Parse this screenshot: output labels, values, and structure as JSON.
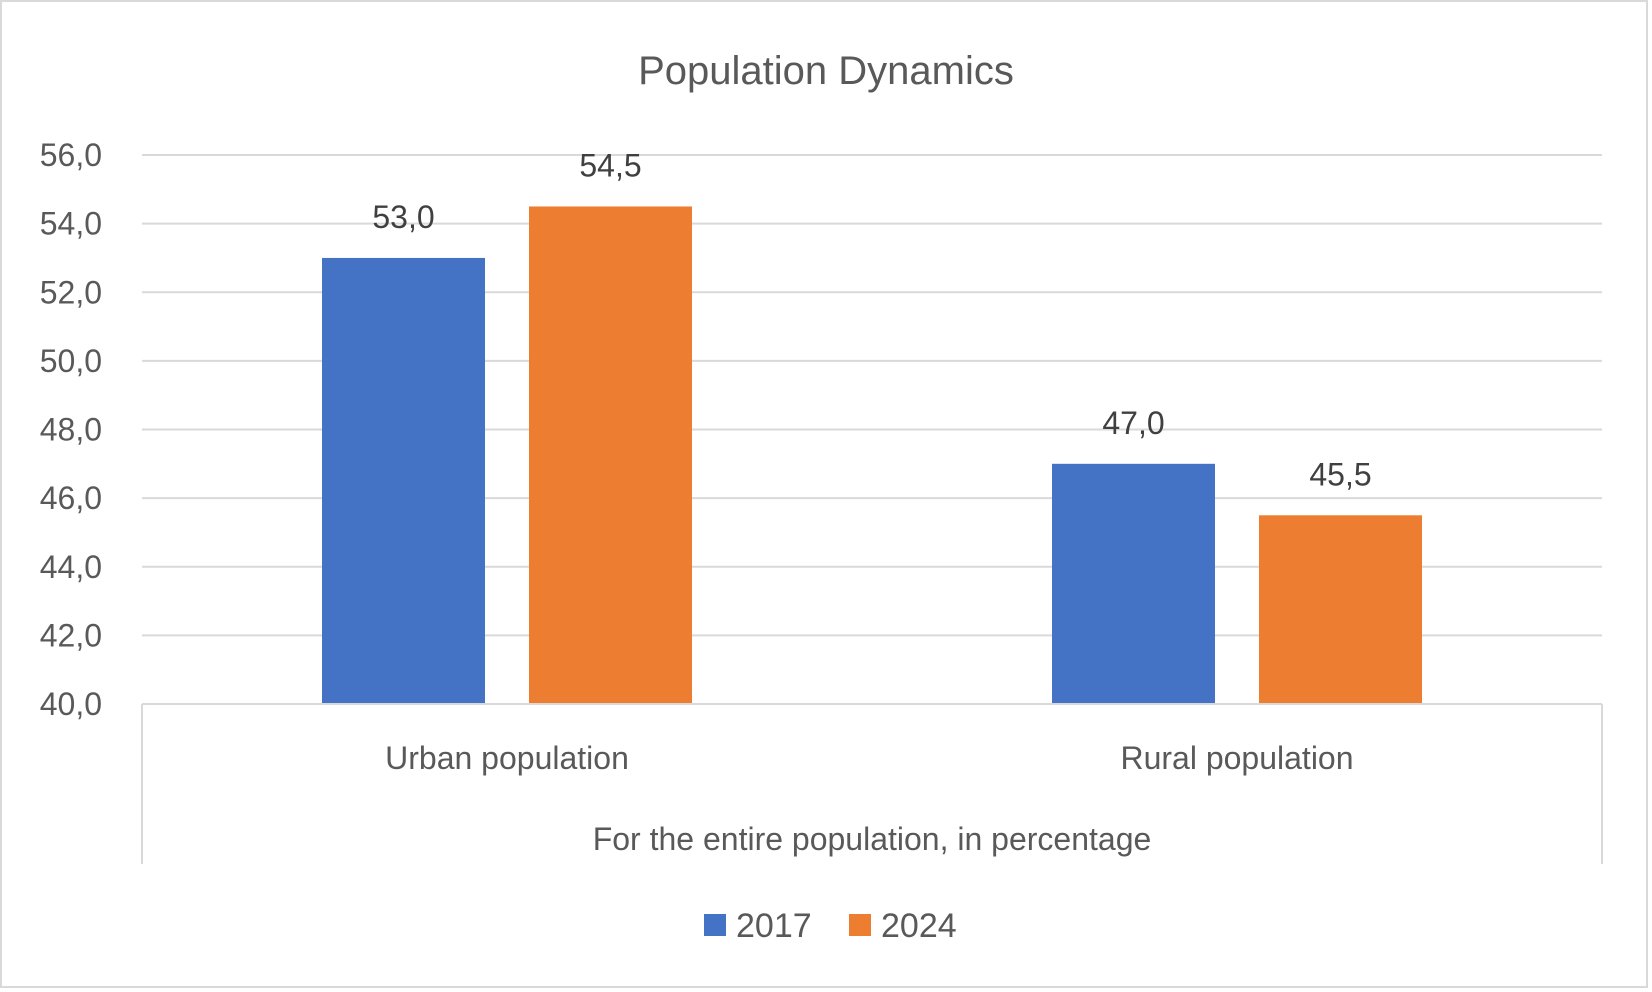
{
  "chart_data": {
    "type": "bar",
    "title": "Population Dynamics",
    "categories": [
      "Urban population",
      "Rural population"
    ],
    "group_label": "For the entire population, in percentage",
    "series": [
      {
        "name": "2017",
        "values": [
          53.0,
          47.0
        ],
        "color": "#4472C4"
      },
      {
        "name": "2024",
        "values": [
          54.5,
          45.5
        ],
        "color": "#ED7D31"
      }
    ],
    "data_labels": [
      [
        "53,0",
        "47,0"
      ],
      [
        "54,5",
        "45,5"
      ]
    ],
    "ylim": [
      40,
      56
    ],
    "yticks": [
      40,
      42,
      44,
      46,
      48,
      50,
      52,
      54,
      56
    ],
    "ytick_labels": [
      "40,0",
      "42,0",
      "44,0",
      "46,0",
      "48,0",
      "50,0",
      "52,0",
      "54,0",
      "56,0"
    ],
    "grid": true,
    "legend": "bottom",
    "axis_color": "#d9d9d9"
  }
}
